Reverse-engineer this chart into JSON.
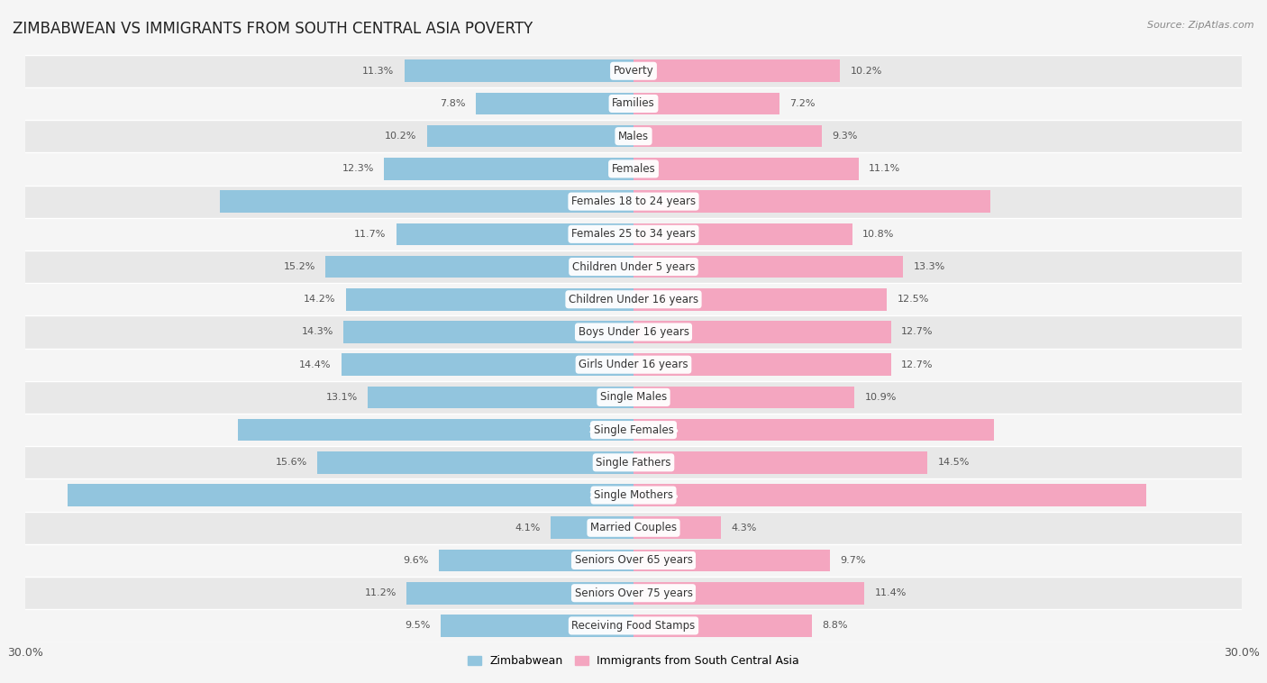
{
  "title": "ZIMBABWEAN VS IMMIGRANTS FROM SOUTH CENTRAL ASIA POVERTY",
  "source": "Source: ZipAtlas.com",
  "categories": [
    "Poverty",
    "Families",
    "Males",
    "Females",
    "Females 18 to 24 years",
    "Females 25 to 34 years",
    "Children Under 5 years",
    "Children Under 16 years",
    "Boys Under 16 years",
    "Girls Under 16 years",
    "Single Males",
    "Single Females",
    "Single Fathers",
    "Single Mothers",
    "Married Couples",
    "Seniors Over 65 years",
    "Seniors Over 75 years",
    "Receiving Food Stamps"
  ],
  "zimbabwean": [
    11.3,
    7.8,
    10.2,
    12.3,
    20.4,
    11.7,
    15.2,
    14.2,
    14.3,
    14.4,
    13.1,
    19.5,
    15.6,
    27.9,
    4.1,
    9.6,
    11.2,
    9.5
  ],
  "immigrants": [
    10.2,
    7.2,
    9.3,
    11.1,
    17.6,
    10.8,
    13.3,
    12.5,
    12.7,
    12.7,
    10.9,
    17.8,
    14.5,
    25.3,
    4.3,
    9.7,
    11.4,
    8.8
  ],
  "zimbabwean_color": "#92c5de",
  "immigrants_color": "#f4a6c0",
  "zimbabwean_label": "Zimbabwean",
  "immigrants_label": "Immigrants from South Central Asia",
  "axis_max": 30.0,
  "background_color": "#f5f5f5",
  "row_colors": [
    "#e8e8e8",
    "#f5f5f5"
  ],
  "title_fontsize": 12,
  "label_fontsize": 8.5,
  "value_fontsize": 8,
  "large_value_threshold": 17.0
}
